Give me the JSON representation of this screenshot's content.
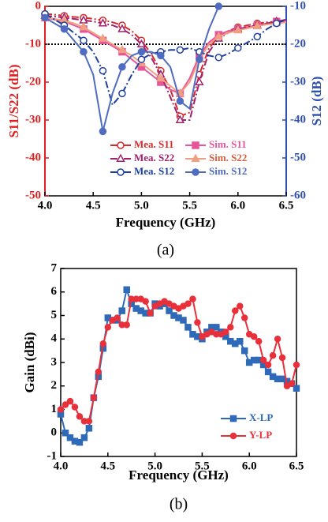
{
  "chart_data": [
    {
      "type": "line",
      "caption": "(a)",
      "x_label": "Frequency (GHz)",
      "y_label": "S11/S22 (dB)",
      "y2_label": "S12 (dB)",
      "y_color": "#e02020",
      "y2_color": "#3050b0",
      "xlim": [
        4,
        6.5
      ],
      "xticks": [
        {
          "value": 4,
          "label": "4.0"
        },
        {
          "value": 4.5,
          "label": "4.5"
        },
        {
          "value": 5,
          "label": "5.0"
        },
        {
          "value": 5.5,
          "label": "5.5"
        },
        {
          "value": 6,
          "label": "6.0"
        },
        {
          "value": 6.5,
          "label": "6.5"
        }
      ],
      "ylim": [
        -50,
        0
      ],
      "yticks": [
        0,
        -10,
        -20,
        -30,
        -40,
        -50
      ],
      "y2lim": [
        -60,
        -10
      ],
      "y2ticks": [
        -10,
        -20,
        -30,
        -40,
        -50,
        -60
      ],
      "hline": -10,
      "x": [
        4,
        4.1,
        4.2,
        4.3,
        4.4,
        4.5,
        4.6,
        4.7,
        4.8,
        4.9,
        5,
        5.1,
        5.2,
        5.3,
        5.4,
        5.5,
        5.6,
        5.7,
        5.8,
        5.9,
        6,
        6.1,
        6.2,
        6.3,
        6.4,
        6.5
      ],
      "series": [
        {
          "name": "Mea. S11",
          "color": "#d42a2a",
          "style": "dashdot",
          "marker": "circle",
          "filled": false,
          "values": [
            -2,
            -2.2,
            -2.5,
            -2.8,
            -3,
            -3.3,
            -3.7,
            -4.2,
            -5,
            -6.5,
            -9,
            -12.5,
            -17,
            -22,
            -29,
            -28,
            -18,
            -11,
            -8,
            -6.5,
            -5.5,
            -5,
            -4.5,
            -4.2,
            -4,
            -4
          ]
        },
        {
          "name": "Sim. S11",
          "color": "#e8559a",
          "style": "solid",
          "marker": "square",
          "filled": true,
          "values": [
            -3,
            -3.5,
            -4,
            -5,
            -6,
            -7.5,
            -9,
            -10.5,
            -12,
            -14,
            -16,
            -18,
            -20,
            -22,
            -23,
            -19,
            -13,
            -9.5,
            -7.5,
            -6.5,
            -6,
            -5.5,
            -5,
            -4.5,
            -4,
            -4
          ]
        },
        {
          "name": "Mea. S22",
          "color": "#a0206e",
          "style": "dashdot",
          "marker": "triangle",
          "filled": false,
          "values": [
            -2.5,
            -2.7,
            -3,
            -3.3,
            -3.7,
            -4,
            -4.5,
            -5,
            -6,
            -7.5,
            -10,
            -13.5,
            -18,
            -24,
            -30,
            -30,
            -20,
            -12,
            -8.5,
            -7,
            -6,
            -5.5,
            -5,
            -4.5,
            -4,
            -3.5
          ]
        },
        {
          "name": "Sim. S22",
          "color": "#f0a080",
          "style": "solid",
          "marker": "triangle",
          "filled": true,
          "values": [
            -3,
            -3.3,
            -3.8,
            -4.5,
            -5.5,
            -7,
            -8.5,
            -10,
            -11.5,
            -13,
            -15,
            -17,
            -19,
            -21,
            -23,
            -20,
            -14,
            -10,
            -8,
            -7,
            -6.3,
            -5.8,
            -5.2,
            -4.8,
            -4.5,
            -4.2
          ]
        },
        {
          "name": "Mea. S12",
          "color": "#1e3fa0",
          "style": "dashdot",
          "marker": "circle",
          "filled": false,
          "axis": "y2",
          "values": [
            -12,
            -13.5,
            -15,
            -17,
            -19,
            -22,
            -27,
            -36,
            -33,
            -28,
            -24,
            -22.5,
            -22,
            -21.5,
            -21.5,
            -21,
            -22,
            -23,
            -23.5,
            -22.5,
            -21,
            -19.5,
            -18,
            -16,
            -14.5,
            -13.5
          ]
        },
        {
          "name": "Sim. S12",
          "color": "#4f6cc0",
          "style": "solid",
          "marker": "circle",
          "filled": true,
          "axis": "y2",
          "values": [
            -13,
            -14.5,
            -16,
            -19,
            -22,
            -28,
            -43,
            -33,
            -26,
            -23,
            -22,
            -22,
            -23,
            -26,
            -35,
            -37,
            -24,
            -16,
            -10,
            null,
            null,
            null,
            null,
            null,
            null,
            null
          ]
        }
      ]
    },
    {
      "type": "line",
      "caption": "(b)",
      "x_label": "Frequency (GHz)",
      "y_label": "Gain (dBi)",
      "xlim": [
        4,
        6.5
      ],
      "xticks": [
        {
          "value": 4,
          "label": "4.0"
        },
        {
          "value": 4.5,
          "label": "4.5"
        },
        {
          "value": 5,
          "label": "5.0"
        },
        {
          "value": 5.5,
          "label": "5.5"
        },
        {
          "value": 6,
          "label": "6.0"
        },
        {
          "value": 6.5,
          "label": "6.5"
        }
      ],
      "ylim": [
        -1,
        7
      ],
      "yticks": [
        -1,
        0,
        1,
        2,
        3,
        4,
        5,
        6,
        7
      ],
      "x": [
        4,
        4.05,
        4.1,
        4.15,
        4.2,
        4.25,
        4.3,
        4.35,
        4.4,
        4.45,
        4.5,
        4.55,
        4.6,
        4.65,
        4.7,
        4.75,
        4.8,
        4.85,
        4.9,
        4.95,
        5,
        5.05,
        5.1,
        5.15,
        5.2,
        5.25,
        5.3,
        5.35,
        5.4,
        5.45,
        5.5,
        5.55,
        5.6,
        5.65,
        5.7,
        5.75,
        5.8,
        5.85,
        5.9,
        5.95,
        6,
        6.05,
        6.1,
        6.15,
        6.2,
        6.25,
        6.3,
        6.35,
        6.4,
        6.45,
        6.5
      ],
      "series": [
        {
          "name": "X-LP",
          "color": "#2e6ab8",
          "style": "solid",
          "marker": "square",
          "filled": true,
          "values": [
            0.8,
            0,
            -0.2,
            -0.35,
            -0.4,
            -0.2,
            0.2,
            1.5,
            2.4,
            3.6,
            4.9,
            4.8,
            4.8,
            5.2,
            6.1,
            5.5,
            5.3,
            5.2,
            5.1,
            5.1,
            5.5,
            5.4,
            5.5,
            5.2,
            5.0,
            4.9,
            4.8,
            4.5,
            4.2,
            4.1,
            4.0,
            4.3,
            4.5,
            4.5,
            4.3,
            4.1,
            3.9,
            3.8,
            3.9,
            3.5,
            3.0,
            3.1,
            3.1,
            2.9,
            2.6,
            2.4,
            2.3,
            2.3,
            2.2,
            2.1,
            1.9
          ]
        },
        {
          "name": "Y-LP",
          "color": "#e8303a",
          "style": "solid",
          "marker": "circle",
          "filled": true,
          "values": [
            1.0,
            1.2,
            1.35,
            1.1,
            0.7,
            0.5,
            0.5,
            1.5,
            2.6,
            3.8,
            4.5,
            4.8,
            4.9,
            4.6,
            4.6,
            5.7,
            5.7,
            5.7,
            5.6,
            5.1,
            5.4,
            5.5,
            5.6,
            5.5,
            5.4,
            5.3,
            5.4,
            5.5,
            5.7,
            4.7,
            4.1,
            4.2,
            4.3,
            4.2,
            4.2,
            4.3,
            4.5,
            5.2,
            5.4,
            4.9,
            4.2,
            4.1,
            3.9,
            3.1,
            2.9,
            3.3,
            4.0,
            3.2,
            2.0,
            2.1,
            2.9
          ]
        }
      ]
    }
  ]
}
